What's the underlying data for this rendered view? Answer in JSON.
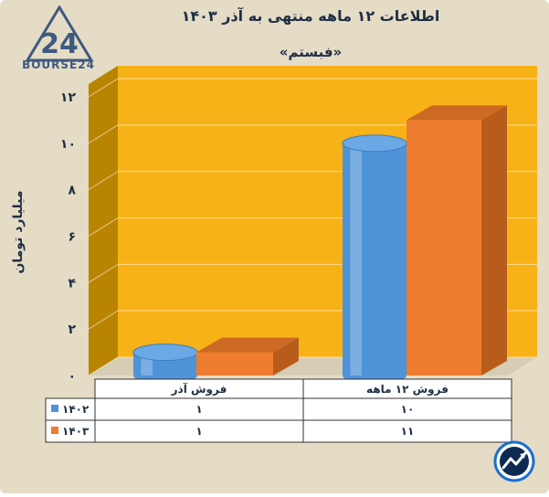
{
  "header": {
    "title": "اطلاعات ۱۲ ماهه منتهی به آذر ۱۴۰۳",
    "subtitle": "«فبستم»",
    "logo_text": "BOURSE24",
    "logo_mark": "24"
  },
  "chart_data": {
    "type": "bar",
    "title": "اطلاعات ۱۲ ماهه منتهی به آذر ۱۴۰۳",
    "subtitle": "«فبستم»",
    "ylabel": "میلیارد تومان",
    "ylim": [
      0,
      12
    ],
    "yticks": [
      0,
      2,
      4,
      6,
      8,
      10,
      12
    ],
    "ytick_labels": [
      "۰",
      "۲",
      "۴",
      "۶",
      "۸",
      "۱۰",
      "۱۲"
    ],
    "categories": [
      "فروش آذر",
      "فروش ۱۲ ماهه"
    ],
    "series": [
      {
        "name": "۱۴۰۲",
        "values": [
          1,
          10
        ],
        "value_labels": [
          "۱",
          "۱۰"
        ],
        "color": "#4f93d8"
      },
      {
        "name": "۱۴۰۳",
        "values": [
          1,
          11
        ],
        "value_labels": [
          "۱",
          "۱۱"
        ],
        "color": "#ee7c2f"
      }
    ],
    "wall_color": "#f7b217",
    "side_wall_color": "#b98500",
    "background_color": "#e5dcc6",
    "legend": "data-table"
  }
}
